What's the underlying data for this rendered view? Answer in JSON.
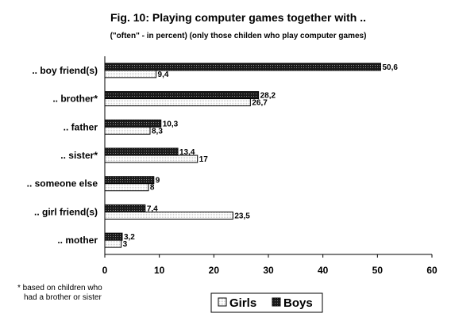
{
  "chart_data": {
    "type": "bar",
    "orientation": "horizontal",
    "title": "Fig. 10: Playing computer games together with ..",
    "subtitle": "(\"often\" - in percent) (only those childen who play computer games)",
    "categories": [
      ".. boy friend(s)",
      ".. brother*",
      ".. father",
      ".. sister*",
      ".. someone else",
      ".. girl friend(s)",
      ".. mother"
    ],
    "series": [
      {
        "name": "Boys",
        "values": [
          50.6,
          28.2,
          10.3,
          13.4,
          9,
          7.4,
          3.2
        ],
        "labels": [
          "50,6",
          "28,2",
          "10,3",
          "13,4",
          "9",
          "7,4",
          "3,2"
        ]
      },
      {
        "name": "Girls",
        "values": [
          9.4,
          26.7,
          8.3,
          17,
          8,
          23.5,
          3
        ],
        "labels": [
          "9,4",
          "26,7",
          "8,3",
          "17",
          "8",
          "23,5",
          "3"
        ]
      }
    ],
    "xlim": [
      0,
      60
    ],
    "xticks": [
      0,
      10,
      20,
      30,
      40,
      50,
      60
    ],
    "grid": false,
    "legend": [
      "Girls",
      "Boys"
    ],
    "legend_position": "bottom-right",
    "footnote_lines": [
      "* based on children who",
      "had a brother or sister"
    ]
  }
}
